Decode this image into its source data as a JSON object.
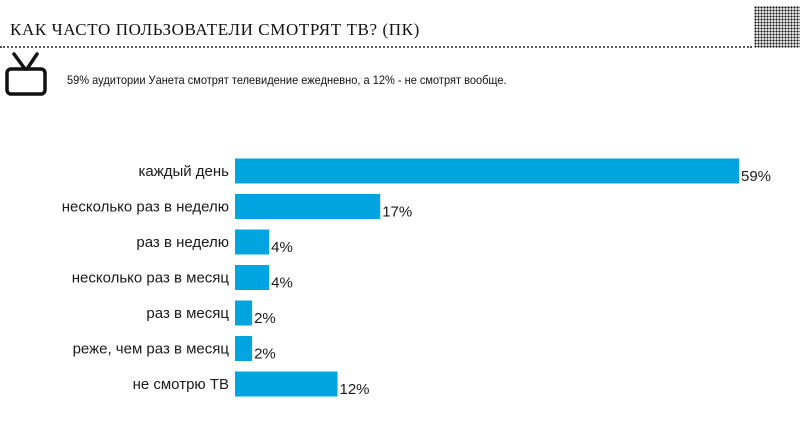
{
  "header": {
    "title": "КАК ЧАСТО ПОЛЬЗОВАТЕЛИ СМОТРЯТ ТВ? (ПК)",
    "subtitle": "59% аудитории Уанета смотрят телевидение ежедневно, а 12% - не смотрят вообще."
  },
  "colors": {
    "bar": "#00a4de",
    "text": "#1a1a1a"
  },
  "icons": {
    "header": "tv-icon"
  },
  "chart_data": {
    "type": "bar",
    "orientation": "horizontal",
    "categories": [
      "каждый день",
      "несколько раз в неделю",
      "раз в неделю",
      "несколько раз в месяц",
      "раз в месяц",
      "реже, чем раз в месяц",
      "не смотрю ТВ"
    ],
    "values": [
      59,
      17,
      4,
      4,
      2,
      2,
      12
    ],
    "value_labels": [
      "59%",
      "17%",
      "4%",
      "4%",
      "2%",
      "2%",
      "12%"
    ],
    "unit": "%",
    "xlim": [
      0,
      59
    ],
    "grid": false,
    "legend": "none"
  }
}
